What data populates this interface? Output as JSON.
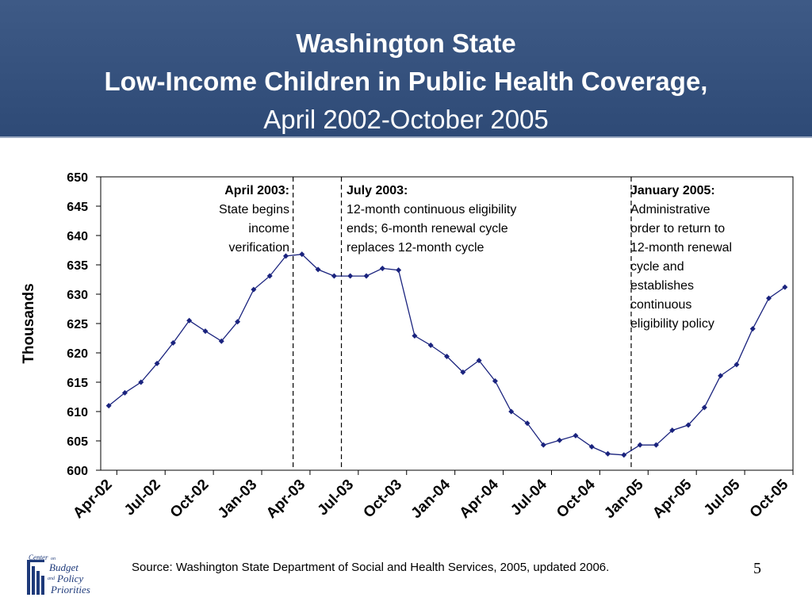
{
  "header": {
    "title_line1": "Washington State",
    "title_line2": "Low-Income Children in Public Health Coverage,",
    "title_line3": "April 2002-October 2005"
  },
  "annotations": [
    {
      "heading": "April 2003:",
      "lines": [
        "State begins",
        "income",
        "verification"
      ]
    },
    {
      "heading": "July 2003:",
      "lines": [
        "12-month continuous eligibility",
        "ends; 6-month renewal cycle",
        "replaces 12-month cycle"
      ]
    },
    {
      "heading": "January 2005:",
      "lines": [
        "Administrative",
        "order to return to",
        "12-month renewal",
        "cycle and",
        "establishes",
        "continuous",
        "eligibility policy"
      ]
    }
  ],
  "footer": {
    "source": "Source: Washington State Department of Social and Health Services, 2005, updated 2006.",
    "page_number": "5",
    "logo_text": [
      "Center",
      "on",
      "Budget",
      "and",
      "Policy",
      "Priorities"
    ]
  },
  "colors": {
    "header_bg": "#34507c",
    "line": "#1a237e",
    "marker": "#1a237e"
  },
  "chart_data": {
    "type": "line",
    "title": "",
    "xlabel": "",
    "ylabel": "Thousands",
    "ylim": [
      600,
      650
    ],
    "yticks": [
      600,
      605,
      610,
      615,
      620,
      625,
      630,
      635,
      640,
      645,
      650
    ],
    "grid": false,
    "categories": [
      "Apr-02",
      "May-02",
      "Jun-02",
      "Jul-02",
      "Aug-02",
      "Sep-02",
      "Oct-02",
      "Nov-02",
      "Dec-02",
      "Jan-03",
      "Feb-03",
      "Mar-03",
      "Apr-03",
      "May-03",
      "Jun-03",
      "Jul-03",
      "Aug-03",
      "Sep-03",
      "Oct-03",
      "Nov-03",
      "Dec-03",
      "Jan-04",
      "Feb-04",
      "Mar-04",
      "Apr-04",
      "May-04",
      "Jun-04",
      "Jul-04",
      "Aug-04",
      "Sep-04",
      "Oct-04",
      "Nov-04",
      "Dec-04",
      "Jan-05",
      "Feb-05",
      "Mar-05",
      "Apr-05",
      "May-05",
      "Jun-05",
      "Jul-05",
      "Aug-05",
      "Sep-05",
      "Oct-05"
    ],
    "tick_labels": [
      "Apr-02",
      "Jul-02",
      "Oct-02",
      "Jan-03",
      "Apr-03",
      "Jul-03",
      "Oct-03",
      "Jan-04",
      "Apr-04",
      "Jul-04",
      "Oct-04",
      "Jan-05",
      "Apr-05",
      "Jul-05",
      "Oct-05"
    ],
    "series": [
      {
        "values": [
          611.0,
          613.2,
          615.0,
          618.2,
          621.7,
          625.5,
          623.7,
          622.0,
          625.3,
          630.8,
          633.1,
          636.5,
          636.8,
          634.2,
          633.1,
          633.1,
          633.1,
          634.4,
          634.1,
          622.9,
          621.3,
          619.4,
          616.7,
          618.7,
          615.2,
          610.0,
          608.0,
          604.3,
          605.1,
          605.9,
          604.0,
          602.8,
          602.6,
          604.3,
          604.3,
          606.8,
          607.7,
          610.7,
          616.1,
          618.0,
          624.1,
          629.3,
          631.2
        ]
      }
    ],
    "vlines": [
      {
        "after": "Mar-03",
        "label": "April 2003:"
      },
      {
        "after": "Jun-03",
        "label": "July 2003:"
      },
      {
        "after": "Dec-04",
        "label": "January 2005:"
      }
    ]
  }
}
